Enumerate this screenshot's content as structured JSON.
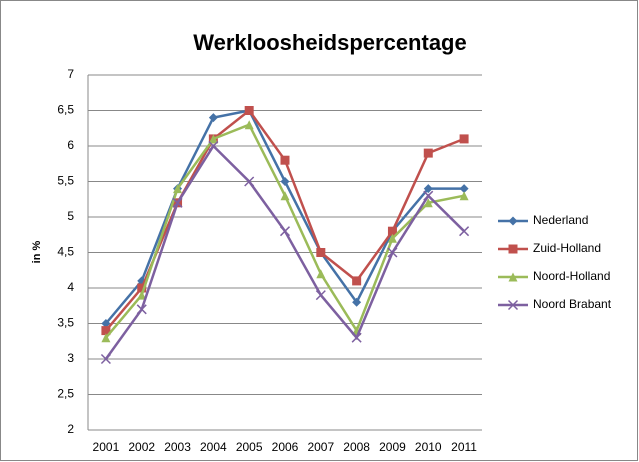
{
  "chart_data": {
    "type": "line",
    "title": "Werkloosheidspercentage",
    "y_label": "in %",
    "categories": [
      "2001",
      "2002",
      "2003",
      "2004",
      "2005",
      "2006",
      "2007",
      "2008",
      "2009",
      "2010",
      "2011"
    ],
    "series": [
      {
        "name": "Nederland",
        "color": "#4572a7",
        "marker": "diamond",
        "values": [
          3.5,
          4.1,
          5.4,
          6.4,
          6.5,
          5.5,
          4.5,
          3.8,
          4.8,
          5.4,
          5.4
        ]
      },
      {
        "name": "Zuid-Holland",
        "color": "#c0504d",
        "marker": "square",
        "values": [
          3.4,
          4.0,
          5.2,
          6.1,
          6.5,
          5.8,
          4.5,
          4.1,
          4.8,
          5.9,
          6.1
        ]
      },
      {
        "name": "Noord-Holland",
        "color": "#9bbb59",
        "marker": "triangle",
        "values": [
          3.3,
          3.9,
          5.4,
          6.1,
          6.3,
          5.3,
          4.2,
          3.4,
          4.7,
          5.2,
          5.3
        ]
      },
      {
        "name": "Noord Brabant",
        "color": "#7d60a0",
        "marker": "x",
        "values": [
          3.0,
          3.7,
          5.2,
          6.0,
          5.5,
          4.8,
          3.9,
          3.3,
          4.5,
          5.3,
          4.8
        ]
      }
    ],
    "ylim": [
      2,
      7
    ],
    "yticks": [
      2,
      {
        "value": 2.5,
        "label": "2,5"
      },
      3,
      {
        "value": 3.5,
        "label": "3,5"
      },
      4,
      {
        "value": 4.5,
        "label": "4,5"
      },
      5,
      {
        "value": 5.5,
        "label": "5,5"
      },
      6,
      {
        "value": 6.5,
        "label": "6,5"
      },
      7
    ],
    "grid": true,
    "legend": "right"
  }
}
